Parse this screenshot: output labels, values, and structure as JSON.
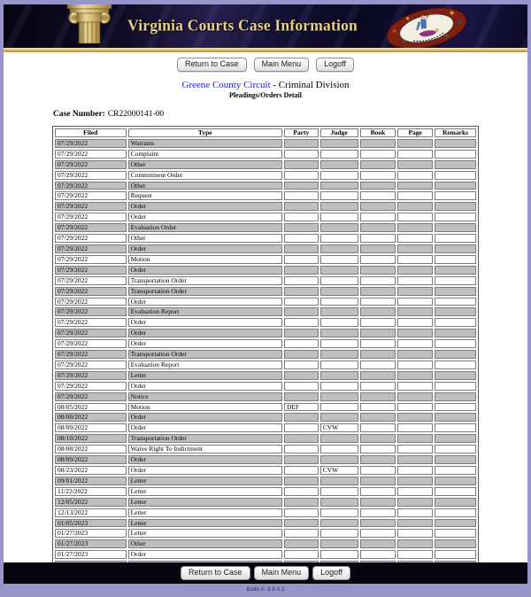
{
  "banner": {
    "title": "Virginia Courts Case Information",
    "column_icon": "ionic-column-icon",
    "seal_icon": "virginia-state-seal-icon"
  },
  "toolbar": {
    "return_to_case": "Return to Case",
    "main_menu": "Main Menu",
    "logoff": "Logoff"
  },
  "heading": {
    "court_link": "Greene County Circuit",
    "division_suffix": " - Criminal Division",
    "subtitle": "Pleadings/Orders Detail"
  },
  "case": {
    "label": "Case Number:",
    "number": "CR22000141-00"
  },
  "table": {
    "columns": [
      "Filed",
      "Type",
      "Party",
      "Judge",
      "Book",
      "Page",
      "Remarks"
    ],
    "column_keys": [
      "filed",
      "type",
      "party",
      "judge",
      "book",
      "page",
      "remarks"
    ],
    "rows": [
      [
        "07/29/2022",
        "Warrants"
      ],
      [
        "07/29/2022",
        "Complaint"
      ],
      [
        "07/29/2022",
        "Other"
      ],
      [
        "07/29/2022",
        "Commitment Order"
      ],
      [
        "07/29/2022",
        "Other"
      ],
      [
        "07/29/2022",
        "Request"
      ],
      [
        "07/29/2022",
        "Order"
      ],
      [
        "07/29/2022",
        "Order"
      ],
      [
        "07/29/2022",
        "Evaluation Order"
      ],
      [
        "07/29/2022",
        "Other"
      ],
      [
        "07/29/2022",
        "Order"
      ],
      [
        "07/29/2022",
        "Motion"
      ],
      [
        "07/29/2022",
        "Order"
      ],
      [
        "07/29/2022",
        "Transportation Order"
      ],
      [
        "07/29/2022",
        "Transportation Order"
      ],
      [
        "07/29/2022",
        "Order"
      ],
      [
        "07/29/2022",
        "Evaluation Report"
      ],
      [
        "07/29/2022",
        "Order"
      ],
      [
        "07/29/2022",
        "Order"
      ],
      [
        "07/29/2022",
        "Order"
      ],
      [
        "07/29/2022",
        "Transportation Order"
      ],
      [
        "07/29/2022",
        "Evaluation Report"
      ],
      [
        "07/29/2022",
        "Letter"
      ],
      [
        "07/29/2022",
        "Order"
      ],
      [
        "07/29/2022",
        "Notice"
      ],
      [
        "08/05/2022",
        "Motion",
        "DEF"
      ],
      [
        "08/08/2022",
        "Order"
      ],
      [
        "08/09/2022",
        "Order",
        "",
        "CVW"
      ],
      [
        "08/10/2022",
        "Transportation Order"
      ],
      [
        "08/08/2022",
        "Waive Right To Indictment"
      ],
      [
        "08/09/2022",
        "Order"
      ],
      [
        "08/23/2022",
        "Order",
        "",
        "CVW"
      ],
      [
        "09/01/2022",
        "Letter"
      ],
      [
        "11/22/2022",
        "Letter"
      ],
      [
        "12/05/2022",
        "Letter"
      ],
      [
        "12/13/2022",
        "Letter"
      ],
      [
        "01/05/2023",
        "Letter"
      ],
      [
        "01/27/2023",
        "Letter"
      ],
      [
        "01/27/2023",
        "Other"
      ],
      [
        "01/27/2023",
        "Order"
      ],
      [
        "02/01/2023",
        "Order"
      ]
    ]
  },
  "footer": {
    "return_to_case": "Return to Case",
    "main_menu": "Main Menu",
    "logoff": "Logoff",
    "build": "Build #: 3.9.0.1"
  },
  "colors": {
    "frame": "#9795c9",
    "banner_bg": "#0d0a22",
    "gold": "#ddc178",
    "link_blue": "#2121cc",
    "row_alt": "#bfbfbf"
  }
}
